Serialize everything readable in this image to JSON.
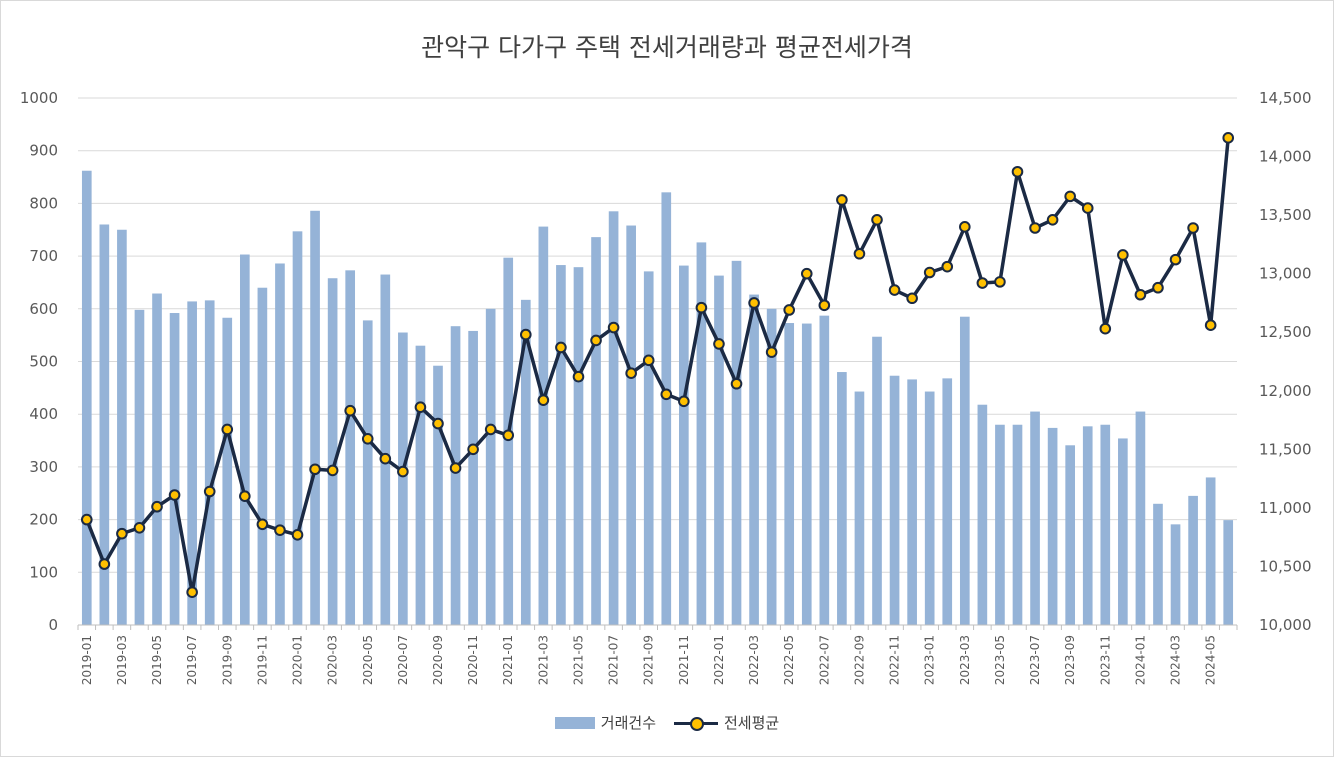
{
  "chart_data": {
    "type": "bar+line",
    "title": "관악구 다가구 주택 전세거래량과 평균전세가격",
    "grid": true,
    "legend_position": "bottom",
    "colors": {
      "bars": "#95b3d7",
      "line": "#1b2a44",
      "markers": "#ffc000"
    },
    "y_left": {
      "min": 0,
      "max": 1000,
      "step": 100,
      "ticks": [
        "0",
        "100",
        "200",
        "300",
        "400",
        "500",
        "600",
        "700",
        "800",
        "900",
        "1000"
      ]
    },
    "y_right": {
      "min": 10000,
      "max": 14500,
      "step": 500,
      "ticks": [
        "10,000",
        "10,500",
        "11,000",
        "11,500",
        "12,000",
        "12,500",
        "13,000",
        "13,500",
        "14,000",
        "14,500"
      ]
    },
    "x_tick_labels": [
      "2019-01",
      "2019-03",
      "2019-05",
      "2019-07",
      "2019-09",
      "2019-11",
      "2020-01",
      "2020-03",
      "2020-05",
      "2020-07",
      "2020-09",
      "2020-11",
      "2021-01",
      "2021-03",
      "2021-05",
      "2021-07",
      "2021-09",
      "2021-11",
      "2022-01",
      "2022-03",
      "2022-05",
      "2022-07",
      "2022-09",
      "2022-11",
      "2023-01",
      "2023-03",
      "2023-05",
      "2023-07",
      "2023-09",
      "2023-11",
      "2024-01",
      "2024-03",
      "2024-05"
    ],
    "categories": [
      "2019-01",
      "2019-02",
      "2019-03",
      "2019-04",
      "2019-05",
      "2019-06",
      "2019-07",
      "2019-08",
      "2019-09",
      "2019-10",
      "2019-11",
      "2019-12",
      "2020-01",
      "2020-02",
      "2020-03",
      "2020-04",
      "2020-05",
      "2020-06",
      "2020-07",
      "2020-08",
      "2020-09",
      "2020-10",
      "2020-11",
      "2020-12",
      "2021-01",
      "2021-02",
      "2021-03",
      "2021-04",
      "2021-05",
      "2021-06",
      "2021-07",
      "2021-08",
      "2021-09",
      "2021-10",
      "2021-11",
      "2021-12",
      "2022-01",
      "2022-02",
      "2022-03",
      "2022-04",
      "2022-05",
      "2022-06",
      "2022-07",
      "2022-08",
      "2022-09",
      "2022-10",
      "2022-11",
      "2022-12",
      "2023-01",
      "2023-02",
      "2023-03",
      "2023-04",
      "2023-05",
      "2023-06",
      "2023-07",
      "2023-08",
      "2023-09",
      "2023-10",
      "2023-11",
      "2023-12",
      "2024-01",
      "2024-02",
      "2024-03",
      "2024-04",
      "2024-05",
      "2024-06"
    ],
    "series": [
      {
        "name": "거래건수",
        "type": "bar",
        "axis": "left",
        "values": [
          862,
          760,
          750,
          598,
          629,
          592,
          614,
          616,
          583,
          703,
          640,
          686,
          747,
          786,
          658,
          673,
          578,
          665,
          555,
          530,
          492,
          567,
          558,
          600,
          697,
          617,
          756,
          683,
          679,
          736,
          785,
          758,
          671,
          821,
          682,
          726,
          663,
          691,
          627,
          600,
          573,
          572,
          587,
          480,
          443,
          547,
          473,
          466,
          443,
          468,
          585,
          418,
          380,
          380,
          405,
          374,
          341,
          377,
          380,
          354,
          405,
          230,
          191,
          245,
          280,
          199
        ]
      },
      {
        "name": "전세평균",
        "type": "line",
        "axis": "right",
        "values": [
          10900,
          10520,
          10780,
          10830,
          11010,
          11110,
          10280,
          11140,
          11670,
          11100,
          10860,
          10810,
          10770,
          11330,
          11320,
          11830,
          11590,
          11420,
          11310,
          11860,
          11720,
          11340,
          11500,
          11670,
          11620,
          12480,
          11920,
          12370,
          12120,
          12430,
          12540,
          12150,
          12260,
          11970,
          11910,
          12710,
          12400,
          12060,
          12750,
          12330,
          12690,
          13000,
          12730,
          13630,
          13170,
          13460,
          12860,
          12790,
          13010,
          13060,
          13400,
          12920,
          12930,
          13870,
          13390,
          13460,
          13660,
          13560,
          12530,
          13160,
          12820,
          12880,
          13120,
          13390,
          12560,
          14160
        ]
      }
    ]
  }
}
